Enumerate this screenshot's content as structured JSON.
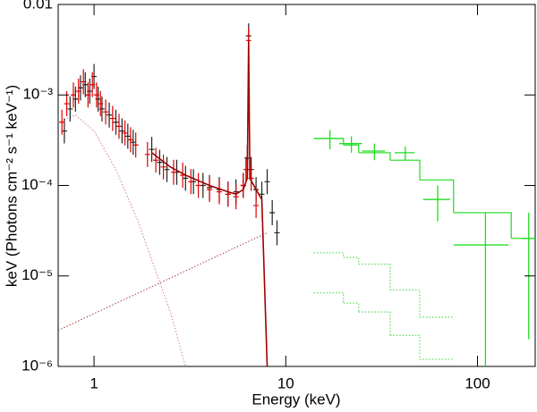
{
  "chart_data": {
    "type": "scatter",
    "x_label": "Energy (keV)",
    "y_label": "keV (Photons cm⁻² s⁻¹ keV⁻¹)",
    "xscale": "log",
    "yscale": "log",
    "xlim": [
      0.65,
      200
    ],
    "ylim": [
      1e-06,
      0.01
    ],
    "xticks": [
      1,
      10,
      100
    ],
    "yticks": [
      {
        "value": 1e-06,
        "label": "10⁻⁶"
      },
      {
        "value": 1e-05,
        "label": "10⁻⁵"
      },
      {
        "value": 0.0001,
        "label": "10⁻⁴"
      },
      {
        "value": 0.001,
        "label": "10⁻³"
      },
      0.01
    ],
    "series": [
      {
        "style": "dotted",
        "color": "#d08080",
        "x": [
          0.65,
          0.8,
          1,
          1.3,
          1.7,
          2,
          2.5,
          3
        ],
        "values": [
          0.0005,
          0.0006,
          0.0004,
          0.00015,
          4e-05,
          1.5e-05,
          4e-06,
          1e-06
        ]
      },
      {
        "style": "dotted",
        "color": "#a04040",
        "x": [
          0.65,
          8
        ],
        "values": [
          2.5e-06,
          3e-05
        ]
      },
      {
        "style": "points",
        "color": "#222222",
        "x": [
          0.7,
          0.75,
          0.8,
          0.85,
          0.9,
          0.95,
          1.0,
          1.05,
          1.1,
          1.2,
          1.3,
          1.4,
          1.5,
          1.6,
          2.0,
          2.2,
          2.4,
          2.7,
          3.0,
          3.3,
          3.7,
          4.0,
          4.5,
          5.0,
          5.5,
          6.0,
          6.3,
          6.4,
          6.6,
          7.0,
          7.5,
          8.0,
          8.5,
          9.0
        ],
        "values": [
          0.0004,
          0.0007,
          0.0009,
          0.0012,
          0.0013,
          0.0011,
          0.0016,
          0.0009,
          0.0007,
          0.0006,
          0.0005,
          0.0004,
          0.00035,
          0.0003,
          0.00025,
          0.00018,
          0.00015,
          0.00014,
          0.00012,
          0.00011,
          0.0001,
          9.5e-05,
          9e-05,
          8e-05,
          8.5e-05,
          0.0001,
          0.0002,
          0.0045,
          0.00015,
          9e-05,
          8e-05,
          0.00011,
          5e-05,
          3e-05
        ]
      },
      {
        "style": "points",
        "color": "#e00000",
        "x": [
          0.68,
          0.72,
          0.78,
          0.83,
          0.88,
          0.93,
          0.98,
          1.03,
          1.08,
          1.15,
          1.25,
          1.35,
          1.45,
          1.55,
          1.65,
          1.9,
          2.1,
          2.3,
          2.6,
          2.9,
          3.2,
          3.5,
          4.0,
          4.5,
          5.0,
          5.5,
          6.0,
          6.2,
          6.4,
          6.6,
          7.0
        ],
        "values": [
          0.0005,
          0.0008,
          0.001,
          0.0011,
          0.0014,
          0.001,
          0.0013,
          0.001,
          0.0008,
          0.00065,
          0.00055,
          0.00045,
          0.00038,
          0.00032,
          0.00028,
          0.00022,
          0.00019,
          0.00016,
          0.00014,
          0.00013,
          0.00011,
          0.0001,
          9e-05,
          8.5e-05,
          8e-05,
          7.5e-05,
          0.0001,
          0.00015,
          0.004,
          0.00012,
          6e-05
        ]
      },
      {
        "style": "line",
        "color": "#a00000",
        "x": [
          2.0,
          2.5,
          3,
          4,
          5,
          5.5,
          6,
          6.3,
          6.4,
          6.5,
          7,
          7.5,
          8
        ],
        "values": [
          0.00023,
          0.00016,
          0.00013,
          0.0001,
          8.5e-05,
          8e-05,
          9e-05,
          0.00012,
          0.004,
          0.00012,
          9e-05,
          7e-05,
          1e-06
        ]
      },
      {
        "style": "step",
        "color": "#33dd33",
        "bins": [
          14,
          20,
          24,
          35,
          50,
          75,
          150,
          200
        ],
        "values": [
          0.00033,
          0.00028,
          0.00023,
          0.00019,
          0.000115,
          5e-05,
          2.6e-05
        ]
      },
      {
        "style": "step-dotted",
        "color": "#66dd66",
        "bins": [
          14,
          20,
          24,
          35,
          50,
          75
        ],
        "values": [
          1.8e-05,
          1.6e-05,
          1.35e-05,
          7e-06,
          3.5e-06
        ]
      },
      {
        "style": "step-dotted",
        "color": "#66dd66",
        "bins": [
          14,
          20,
          24,
          35,
          50,
          75
        ],
        "values": [
          6.5e-06,
          5e-06,
          4e-06,
          2.2e-06,
          1.2e-06
        ]
      },
      {
        "style": "crosses",
        "color": "#22dd22",
        "x": [
          17,
          22,
          29,
          42,
          62,
          110,
          185
        ],
        "x_err": [
          3,
          3,
          4,
          5,
          10,
          35,
          15
        ],
        "values": [
          0.00033,
          0.00029,
          0.00024,
          0.00023,
          7e-05,
          2.2e-05,
          2.6e-05
        ],
        "y_err": [
          8e-05,
          6e-05,
          5e-05,
          4e-05,
          3e-05,
          2.8e-05,
          2.4e-05
        ]
      }
    ]
  }
}
